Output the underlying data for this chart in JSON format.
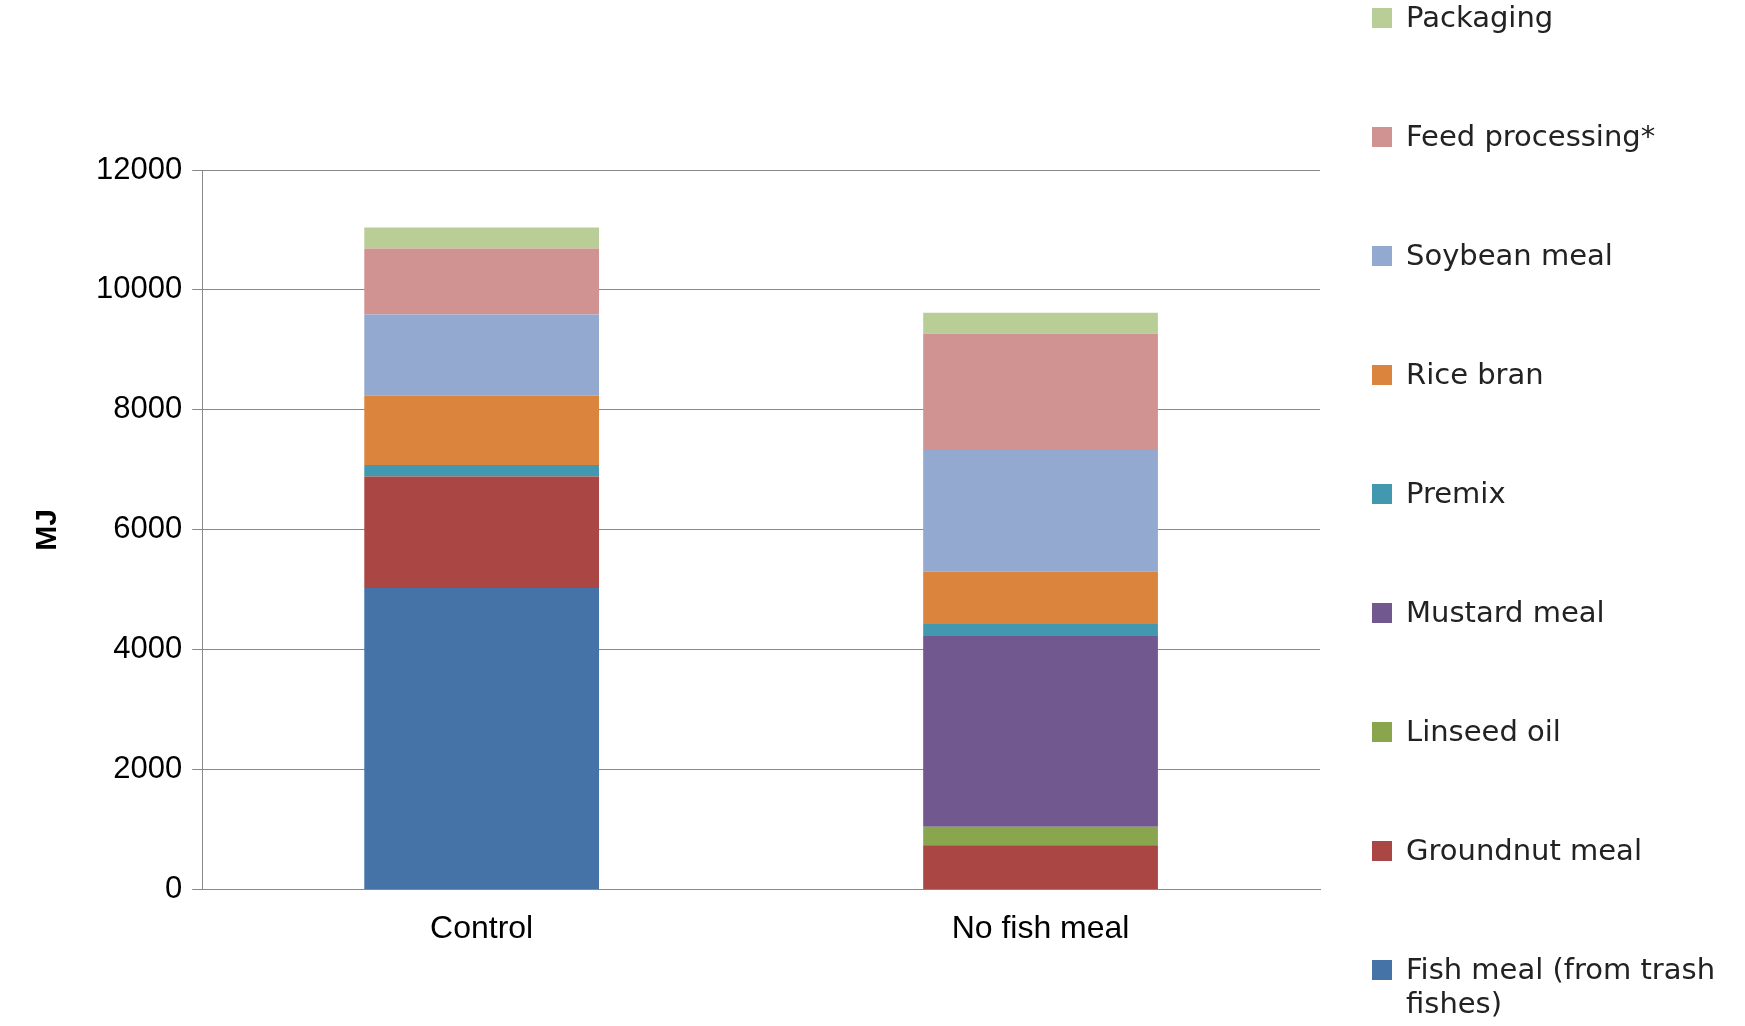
{
  "chart_data": {
    "type": "bar",
    "stacked": true,
    "categories": [
      "Control",
      "No fish meal"
    ],
    "ylabel": "MJ",
    "ylim": [
      0,
      12000
    ],
    "yticks": [
      0,
      2000,
      4000,
      6000,
      8000,
      10000,
      12000
    ],
    "grid": "y",
    "legend": "right",
    "series": [
      {
        "name": "Fish meal (from trash fishes)",
        "color": "#4572a7",
        "values": [
          5030,
          null
        ]
      },
      {
        "name": "Groundnut meal",
        "color": "#aa4643",
        "values": [
          1860,
          740
        ]
      },
      {
        "name": "Linseed oil",
        "color": "#89a54e",
        "values": [
          null,
          310
        ]
      },
      {
        "name": "Mustard meal",
        "color": "#71588f",
        "values": [
          null,
          3180
        ]
      },
      {
        "name": "Premix",
        "color": "#4198af",
        "values": [
          190,
          200
        ]
      },
      {
        "name": "Rice bran",
        "color": "#db843d",
        "values": [
          1160,
          870
        ]
      },
      {
        "name": "Soybean meal",
        "color": "#93a9cf",
        "values": [
          1350,
          2030
        ]
      },
      {
        "name": "Feed processing*",
        "color": "#d19392",
        "values": [
          1100,
          1940
        ]
      },
      {
        "name": "Packaging",
        "color": "#b9cd96",
        "values": [
          350,
          350
        ]
      }
    ]
  }
}
